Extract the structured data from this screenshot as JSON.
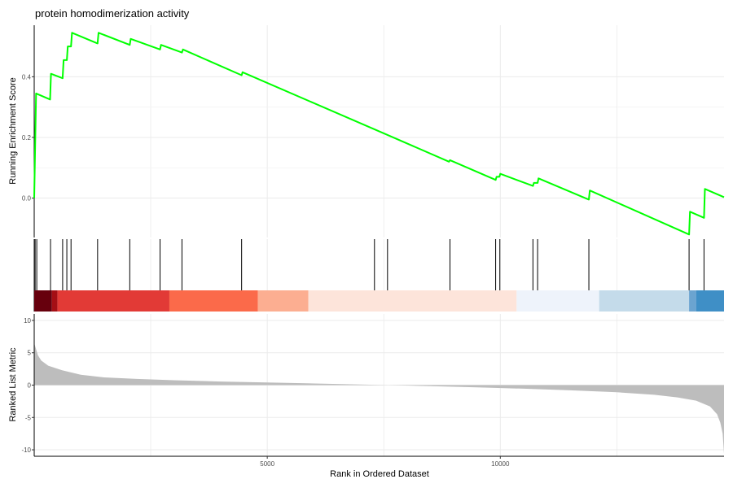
{
  "chart_data": {
    "type": "line",
    "title": "protein homodimerization activity",
    "xlabel": "Rank in Ordered Dataset",
    "xlim": [
      0,
      14800
    ],
    "x_ticks": [
      5000,
      10000
    ],
    "enrichment": {
      "ylabel": "Running Enrichment Score",
      "ylim": [
        -0.13,
        0.57
      ],
      "y_ticks": [
        0.0,
        0.2,
        0.4
      ],
      "line_color": "#00ff00",
      "points": [
        [
          0,
          0.0
        ],
        [
          40,
          0.345
        ],
        [
          340,
          0.325
        ],
        [
          360,
          0.41
        ],
        [
          610,
          0.395
        ],
        [
          630,
          0.455
        ],
        [
          700,
          0.455
        ],
        [
          720,
          0.5
        ],
        [
          790,
          0.5
        ],
        [
          810,
          0.545
        ],
        [
          1360,
          0.51
        ],
        [
          1380,
          0.545
        ],
        [
          2050,
          0.505
        ],
        [
          2070,
          0.525
        ],
        [
          2700,
          0.49
        ],
        [
          2720,
          0.505
        ],
        [
          3170,
          0.48
        ],
        [
          3190,
          0.49
        ],
        [
          4450,
          0.405
        ],
        [
          4470,
          0.415
        ],
        [
          7550,
          0.21
        ],
        [
          8900,
          0.12
        ],
        [
          8920,
          0.125
        ],
        [
          9900,
          0.06
        ],
        [
          9920,
          0.07
        ],
        [
          9980,
          0.07
        ],
        [
          10000,
          0.08
        ],
        [
          10700,
          0.04
        ],
        [
          10720,
          0.05
        ],
        [
          10800,
          0.05
        ],
        [
          10820,
          0.065
        ],
        [
          11900,
          -0.005
        ],
        [
          11920,
          0.025
        ],
        [
          14050,
          -0.12
        ],
        [
          14070,
          -0.045
        ],
        [
          14370,
          -0.065
        ],
        [
          14390,
          0.03
        ],
        [
          14800,
          0.003
        ]
      ]
    },
    "hits": [
      20,
      55,
      350,
      610,
      700,
      790,
      1360,
      2050,
      2700,
      3170,
      4450,
      7300,
      7580,
      8920,
      9900,
      9990,
      10700,
      10800,
      11900,
      14050,
      14370
    ],
    "color_bands": [
      {
        "from": 0,
        "to": 380,
        "color": "#67000d"
      },
      {
        "from": 380,
        "to": 500,
        "color": "#a50f15"
      },
      {
        "from": 500,
        "to": 2900,
        "color": "#e23a36"
      },
      {
        "from": 2900,
        "to": 4800,
        "color": "#fb6a4a"
      },
      {
        "from": 4800,
        "to": 5880,
        "color": "#fcae91"
      },
      {
        "from": 5880,
        "to": 10350,
        "color": "#fde4da"
      },
      {
        "from": 10350,
        "to": 12120,
        "color": "#eef3fb"
      },
      {
        "from": 12120,
        "to": 14050,
        "color": "#c4dbea"
      },
      {
        "from": 14050,
        "to": 14200,
        "color": "#6ba4d0"
      },
      {
        "from": 14200,
        "to": 14800,
        "color": "#3f8fc6"
      }
    ],
    "ranked_metric": {
      "ylabel": "Ranked List Metric",
      "ylim": [
        -11,
        11
      ],
      "y_ticks": [
        10,
        5,
        0,
        -5,
        -10
      ],
      "fill_color": "#bdbdbd",
      "points": [
        [
          0,
          6.5
        ],
        [
          30,
          5.8
        ],
        [
          80,
          4.6
        ],
        [
          150,
          3.8
        ],
        [
          300,
          3.0
        ],
        [
          600,
          2.3
        ],
        [
          1000,
          1.6
        ],
        [
          1500,
          1.2
        ],
        [
          2200,
          0.95
        ],
        [
          3000,
          0.75
        ],
        [
          4000,
          0.55
        ],
        [
          5000,
          0.4
        ],
        [
          6000,
          0.25
        ],
        [
          7000,
          0.1
        ],
        [
          7600,
          0.0
        ],
        [
          8500,
          -0.15
        ],
        [
          9500,
          -0.35
        ],
        [
          10500,
          -0.55
        ],
        [
          11500,
          -0.8
        ],
        [
          12500,
          -1.1
        ],
        [
          13300,
          -1.5
        ],
        [
          13800,
          -1.9
        ],
        [
          14200,
          -2.4
        ],
        [
          14500,
          -3.3
        ],
        [
          14650,
          -4.5
        ],
        [
          14720,
          -5.8
        ],
        [
          14770,
          -7.5
        ],
        [
          14800,
          -10.6
        ]
      ]
    }
  }
}
